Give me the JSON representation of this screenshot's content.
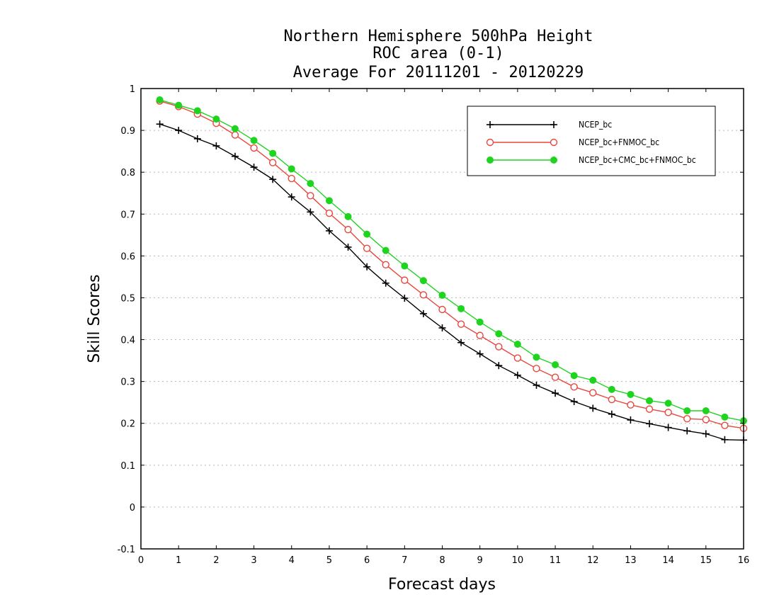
{
  "chart_data": {
    "type": "line",
    "title_lines": [
      "Northern Hemisphere 500hPa Height",
      "ROC area (0-1)",
      "Average For 20111201 - 20120229"
    ],
    "xlabel": "Forecast days",
    "ylabel": "Skill Scores",
    "xlim": [
      0,
      16
    ],
    "ylim": [
      -0.1,
      1
    ],
    "x_ticks": [
      0,
      1,
      2,
      3,
      4,
      5,
      6,
      7,
      8,
      9,
      10,
      11,
      12,
      13,
      14,
      15,
      16
    ],
    "y_ticks": [
      -0.1,
      0,
      0.1,
      0.2,
      0.3,
      0.4,
      0.5,
      0.6,
      0.7,
      0.8,
      0.9,
      1
    ],
    "y_tick_labels": [
      "-0.1",
      "0",
      "0.1",
      "0.2",
      "0.3",
      "0.4",
      "0.5",
      "0.6",
      "0.7",
      "0.8",
      "0.9",
      "1"
    ],
    "grid": true,
    "legend_position": "top-right",
    "x": [
      0.5,
      1,
      1.5,
      2,
      2.5,
      3,
      3.5,
      4,
      4.5,
      5,
      5.5,
      6,
      6.5,
      7,
      7.5,
      8,
      8.5,
      9,
      9.5,
      10,
      10.5,
      11,
      11.5,
      12,
      12.5,
      13,
      13.5,
      14,
      14.5,
      15,
      15.5,
      16
    ],
    "series": [
      {
        "name": "NCEP_bc",
        "color": "#000000",
        "marker": "plus",
        "values": [
          0.915,
          0.9,
          0.88,
          0.863,
          0.838,
          0.812,
          0.783,
          0.741,
          0.705,
          0.66,
          0.621,
          0.574,
          0.535,
          0.499,
          0.462,
          0.428,
          0.393,
          0.366,
          0.338,
          0.315,
          0.291,
          0.272,
          0.252,
          0.236,
          0.222,
          0.208,
          0.199,
          0.19,
          0.182,
          0.175,
          0.161,
          0.16
        ]
      },
      {
        "name": "NCEP_bc+FNMOC_bc",
        "color": "#e8473e",
        "marker": "open-circle",
        "values": [
          0.97,
          0.957,
          0.939,
          0.917,
          0.889,
          0.858,
          0.823,
          0.785,
          0.744,
          0.702,
          0.663,
          0.618,
          0.579,
          0.542,
          0.507,
          0.472,
          0.437,
          0.41,
          0.383,
          0.356,
          0.331,
          0.31,
          0.287,
          0.273,
          0.257,
          0.244,
          0.234,
          0.226,
          0.211,
          0.209,
          0.195,
          0.188
        ]
      },
      {
        "name": "NCEP_bc+CMC_bc+FNMOC_bc",
        "color": "#1fd41f",
        "marker": "filled-circle",
        "values": [
          0.973,
          0.96,
          0.947,
          0.927,
          0.904,
          0.876,
          0.845,
          0.808,
          0.773,
          0.732,
          0.694,
          0.652,
          0.613,
          0.576,
          0.541,
          0.506,
          0.474,
          0.442,
          0.414,
          0.389,
          0.358,
          0.34,
          0.314,
          0.303,
          0.281,
          0.269,
          0.254,
          0.248,
          0.23,
          0.23,
          0.215,
          0.206
        ]
      }
    ]
  }
}
